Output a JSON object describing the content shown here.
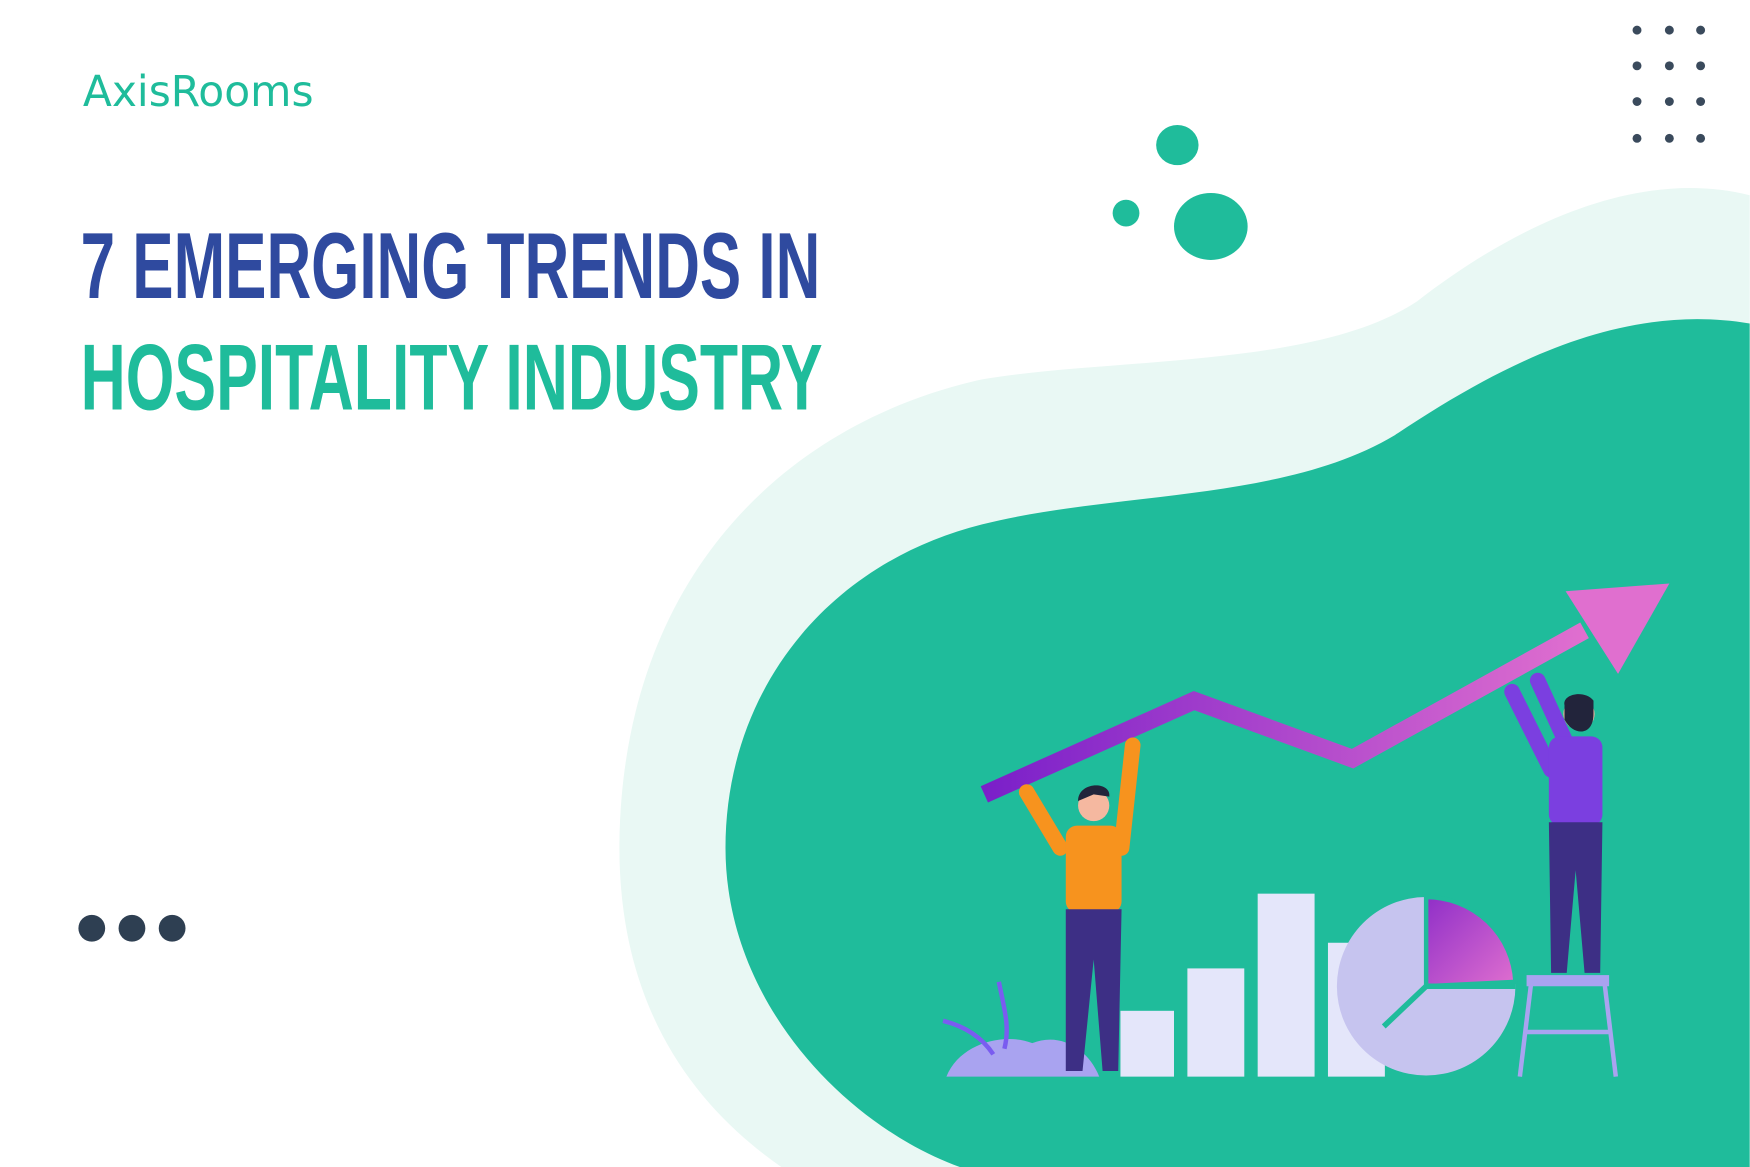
{
  "header": {
    "logo": "AxisRooms"
  },
  "headline": {
    "line1": "7 EMERGING TRENDS IN",
    "line2": "HOSPITALITY INDUSTRY"
  }
}
